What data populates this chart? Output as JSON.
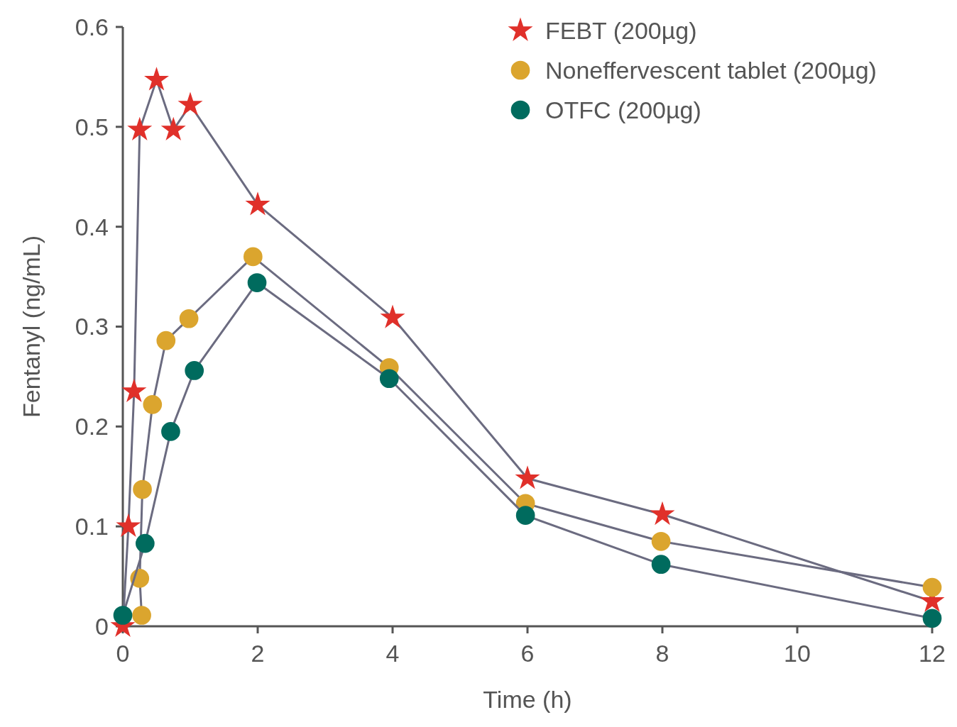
{
  "chart_data": {
    "type": "line",
    "xlabel": "Time (h)",
    "ylabel": "Fentanyl (ng/mL)",
    "xlim": [
      0,
      12
    ],
    "xticks": [
      0,
      2,
      4,
      6,
      8,
      10,
      12
    ],
    "ylim": [
      0,
      0.6
    ],
    "yticks": [
      0,
      0.1,
      0.2,
      0.3,
      0.4,
      0.5,
      0.6
    ],
    "grid": false,
    "legend": "top right",
    "series": [
      {
        "name": "FEBT (200µg)",
        "color": "#e0302a",
        "marker": "star",
        "x": [
          0,
          0.083,
          0.167,
          0.25,
          0.5,
          0.75,
          1,
          2,
          4,
          6,
          8,
          12
        ],
        "values": [
          0,
          0.1,
          0.235,
          0.497,
          0.547,
          0.497,
          0.522,
          0.422,
          0.309,
          0.148,
          0.112,
          0.025
        ]
      },
      {
        "name": "Noneffervescent tablet (200µg)",
        "color": "#dba52e",
        "marker": "circle",
        "x": [
          0.28,
          0.25,
          0.29,
          0.44,
          0.64,
          0.98,
          1.93,
          3.95,
          5.97,
          7.98,
          12
        ],
        "values": [
          0.011,
          0.048,
          0.137,
          0.222,
          0.286,
          0.308,
          0.37,
          0.259,
          0.123,
          0.085,
          0.039
        ]
      },
      {
        "name": "OTFC (200µg)",
        "color": "#006b5e",
        "marker": "circle",
        "x": [
          0,
          0.33,
          0.71,
          1.06,
          1.99,
          3.95,
          5.97,
          7.98,
          12
        ],
        "values": [
          0.011,
          0.083,
          0.195,
          0.256,
          0.344,
          0.248,
          0.111,
          0.062,
          0.008
        ]
      }
    ]
  }
}
